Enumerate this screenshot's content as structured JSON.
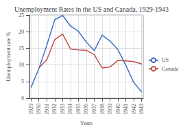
{
  "chart_data": {
    "type": "line",
    "title": "Unemployment Rates in the US and Canada, 1929-1943",
    "xlabel": "Years",
    "ylabel": "Unemployment rate %",
    "x": [
      1929,
      1930,
      1931,
      1932,
      1933,
      1934,
      1935,
      1936,
      1937,
      1938,
      1939,
      1940,
      1941,
      1942,
      1943
    ],
    "series": [
      {
        "name": "US",
        "color": "#4472c4",
        "values": [
          3.2,
          8.9,
          15.9,
          23.6,
          24.9,
          21.7,
          20.1,
          16.9,
          14.3,
          19.0,
          17.2,
          14.6,
          9.9,
          4.7,
          1.9
        ]
      },
      {
        "name": "Canada",
        "color": "#c0504d",
        "values": [
          null,
          9.1,
          11.6,
          17.6,
          19.3,
          14.8,
          14.5,
          14.4,
          13.1,
          9.1,
          9.4,
          11.4,
          11.2,
          11.0,
          10.3
        ]
      }
    ],
    "xlim": [
      1928.8,
      1943.2
    ],
    "xticks": [
      1929,
      1930,
      1931,
      1932,
      1933,
      1934,
      1935,
      1936,
      1937,
      1938,
      1939,
      1940,
      1941,
      1942,
      1943
    ],
    "ylim": [
      0,
      25
    ],
    "yticks": [
      0,
      5,
      10,
      15,
      20,
      25
    ],
    "grid": true,
    "legend": "right"
  }
}
